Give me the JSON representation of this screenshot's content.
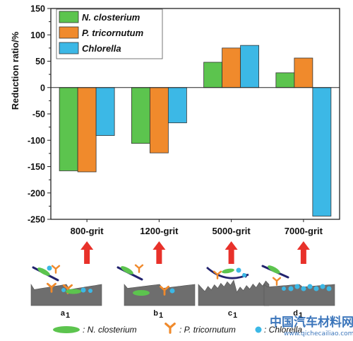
{
  "chart_data": {
    "type": "bar",
    "categories": [
      "800-grit",
      "1200-grit",
      "5000-grit",
      "7000-grit"
    ],
    "series": [
      {
        "name": "N. closterium",
        "color": "#5cc44e",
        "values": [
          -158,
          -106,
          48,
          28
        ]
      },
      {
        "name": "P. tricornutum",
        "color": "#f08a2c",
        "values": [
          -160,
          -124,
          75,
          56
        ]
      },
      {
        "name": "Chlorella",
        "color": "#3cb8e6",
        "values": [
          -91,
          -67,
          80,
          -244
        ]
      }
    ],
    "ylabel": "Reduction ratio/%",
    "ylim": [
      -250,
      150
    ],
    "yticks": [
      150,
      100,
      50,
      0,
      -50,
      -100,
      -150,
      -200,
      -250
    ],
    "legend_position": "top-left",
    "grid": false
  },
  "schematic": {
    "panels": [
      {
        "label": "a",
        "sub": "1"
      },
      {
        "label": "b",
        "sub": "1"
      },
      {
        "label": "c",
        "sub": "1"
      },
      {
        "label": "d",
        "sub": "1"
      }
    ],
    "arrow_color": "#e8312a",
    "legend": [
      {
        "label": ": N. closterium",
        "icon": "green-ellipse-icon"
      },
      {
        "label": ": P. tricornutum",
        "icon": "orange-tripod-icon"
      },
      {
        "label": ": Chlorella",
        "icon": "blue-dot-icon"
      }
    ]
  },
  "watermark": {
    "text": "中国汽车材料网",
    "url": "www.qichecailiao.com"
  }
}
